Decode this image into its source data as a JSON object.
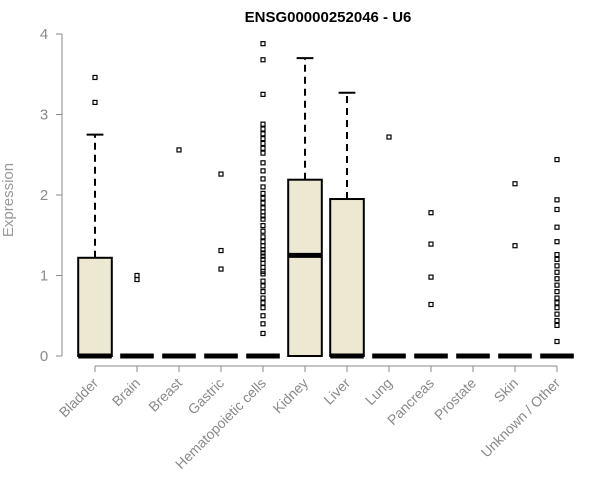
{
  "chart_data": {
    "type": "boxplot",
    "title": "ENSG00000252046 - U6",
    "xlabel": "",
    "ylabel": "Expression",
    "ylim": [
      0,
      4
    ],
    "yticks": [
      "0",
      "1",
      "2",
      "3",
      "4"
    ],
    "grid": false,
    "colors": {
      "box_fill": "#ede8d2",
      "box_stroke": "#000000",
      "axis": "#8a8a8a"
    },
    "categories": [
      "Bladder",
      "Brain",
      "Breast",
      "Gastric",
      "Hematopoietic cells",
      "Kidney",
      "Liver",
      "Lung",
      "Pancreas",
      "Prostate",
      "Skin",
      "Unknown / Other"
    ],
    "boxes": [
      {
        "category": "Bladder",
        "whisker_low": 0,
        "q1": 0,
        "median": 0,
        "q3": 1.22,
        "whisker_high": 2.75,
        "outliers": [
          3.15,
          3.46
        ]
      },
      {
        "category": "Brain",
        "whisker_low": 0,
        "q1": 0,
        "median": 0,
        "q3": 0,
        "whisker_high": 0,
        "outliers": [
          0.95,
          1.0
        ]
      },
      {
        "category": "Breast",
        "whisker_low": 0,
        "q1": 0,
        "median": 0,
        "q3": 0,
        "whisker_high": 0,
        "outliers": [
          2.56
        ]
      },
      {
        "category": "Gastric",
        "whisker_low": 0,
        "q1": 0,
        "median": 0,
        "q3": 0,
        "whisker_high": 0,
        "outliers": [
          1.08,
          1.31,
          2.26
        ]
      },
      {
        "category": "Hematopoietic cells",
        "whisker_low": 0,
        "q1": 0,
        "median": 0,
        "q3": 0,
        "whisker_high": 0,
        "outliers": [
          0.28,
          0.4,
          0.5,
          0.6,
          0.66,
          0.72,
          0.8,
          0.87,
          0.93,
          1.02,
          1.05,
          1.1,
          1.15,
          1.2,
          1.24,
          1.28,
          1.32,
          1.37,
          1.42,
          1.48,
          1.55,
          1.62,
          1.7,
          1.74,
          1.79,
          1.84,
          1.9,
          1.96,
          2.02,
          2.1,
          2.2,
          2.3,
          2.4,
          2.52,
          2.58,
          2.64,
          2.7,
          2.76,
          2.82,
          2.88,
          3.25,
          3.68,
          3.88
        ]
      },
      {
        "category": "Kidney",
        "whisker_low": 0,
        "q1": 0,
        "median": 1.25,
        "q3": 2.19,
        "whisker_high": 3.7,
        "outliers": []
      },
      {
        "category": "Liver",
        "whisker_low": 0,
        "q1": 0,
        "median": 0,
        "q3": 1.95,
        "whisker_high": 3.27,
        "outliers": []
      },
      {
        "category": "Lung",
        "whisker_low": 0,
        "q1": 0,
        "median": 0,
        "q3": 0,
        "whisker_high": 0,
        "outliers": [
          2.72
        ]
      },
      {
        "category": "Pancreas",
        "whisker_low": 0,
        "q1": 0,
        "median": 0,
        "q3": 0,
        "whisker_high": 0,
        "outliers": [
          0.64,
          0.98,
          1.39,
          1.78
        ]
      },
      {
        "category": "Prostate",
        "whisker_low": 0,
        "q1": 0,
        "median": 0,
        "q3": 0,
        "whisker_high": 0,
        "outliers": []
      },
      {
        "category": "Skin",
        "whisker_low": 0,
        "q1": 0,
        "median": 0,
        "q3": 0,
        "whisker_high": 0,
        "outliers": [
          1.37,
          2.14
        ]
      },
      {
        "category": "Unknown / Other",
        "whisker_low": 0,
        "q1": 0,
        "median": 0,
        "q3": 0,
        "whisker_high": 0,
        "outliers": [
          0.18,
          0.38,
          0.44,
          0.52,
          0.6,
          0.66,
          0.72,
          0.8,
          0.88,
          0.96,
          1.04,
          1.12,
          1.2,
          1.26,
          1.42,
          1.6,
          1.82,
          1.94,
          2.44
        ]
      }
    ]
  }
}
